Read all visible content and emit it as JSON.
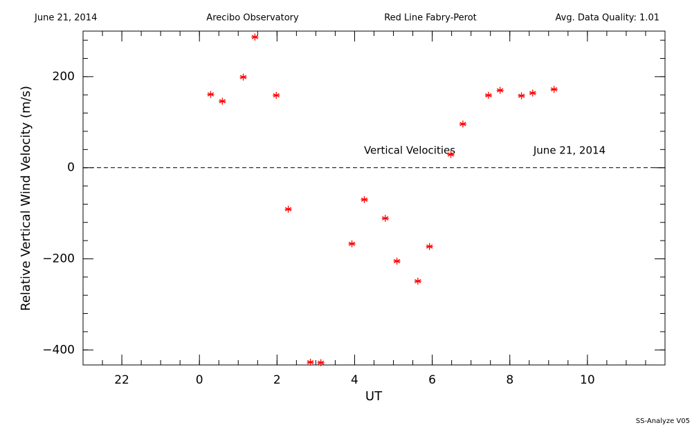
{
  "chart_data": {
    "type": "scatter",
    "header": [
      "June 21, 2014",
      "Arecibo Observatory",
      "Red Line Fabry-Perot",
      "Avg. Data Quality: 1.01"
    ],
    "annotations": [
      "Vertical Velocities",
      "June 21, 2014"
    ],
    "footer": "SS-Analyze V05",
    "xlabel": "UT",
    "ylabel": "Relative Vertical Wind Velocity (m/s)",
    "xlim": [
      -3,
      12
    ],
    "ylim": [
      -433,
      300
    ],
    "xticks": [
      {
        "value": -2,
        "label": "22"
      },
      0,
      2,
      4,
      6,
      8,
      10
    ],
    "yticks": [
      {
        "value": -400,
        "label": "−400"
      },
      {
        "value": -200,
        "label": "−200"
      },
      0,
      200
    ],
    "xminor": 0.5,
    "yminor": 40,
    "hline": 0,
    "color": "#ff0000",
    "x": [
      0.29,
      0.59,
      1.13,
      1.43,
      1.98,
      2.29,
      2.86,
      3.13,
      3.93,
      4.25,
      4.79,
      5.09,
      5.63,
      5.93,
      6.48,
      6.79,
      7.45,
      7.75,
      8.3,
      8.59,
      9.14
    ],
    "values": [
      161,
      146,
      199,
      287,
      159,
      -91,
      -427,
      -428,
      -167,
      -70,
      -111,
      -205,
      -249,
      -173,
      29,
      96,
      159,
      170,
      158,
      164,
      172
    ]
  }
}
